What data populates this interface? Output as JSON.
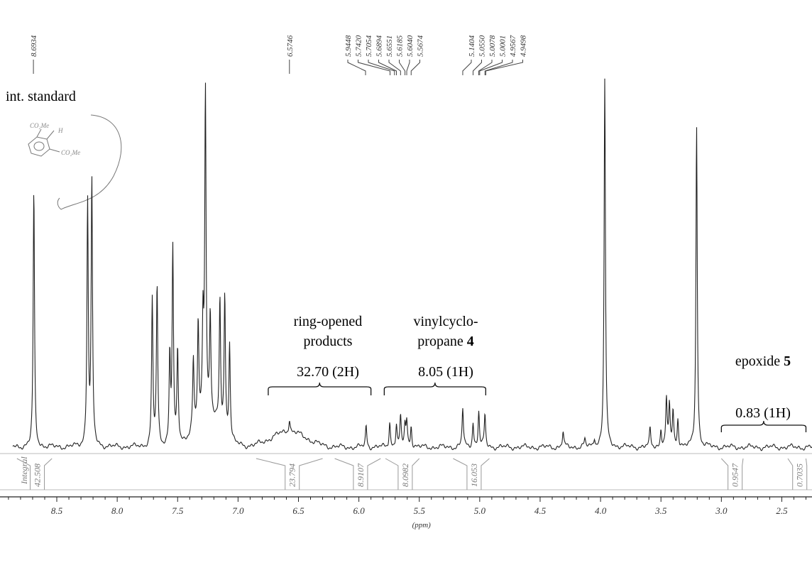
{
  "chart_data": {
    "type": "line",
    "title": "",
    "xlabel": "(ppm)",
    "ylabel": "",
    "x_reversed": true,
    "xlim": [
      8.97,
      2.25
    ],
    "x_ticks": [
      "8.5",
      "8.0",
      "7.5",
      "7.0",
      "6.5",
      "6.0",
      "5.5",
      "5.0",
      "4.5",
      "4.0",
      "3.5",
      "3.0",
      "2.5"
    ],
    "x_tick_values": [
      8.5,
      8.0,
      7.5,
      7.0,
      6.5,
      6.0,
      5.5,
      5.0,
      4.5,
      4.0,
      3.5,
      3.0,
      2.5
    ],
    "grid": false,
    "series": [
      {
        "peaks": [
          {
            "x": 8.69,
            "h": 360
          },
          {
            "x": 8.245,
            "h": 345
          },
          {
            "x": 8.21,
            "h": 370
          },
          {
            "x": 7.71,
            "h": 205
          },
          {
            "x": 7.67,
            "h": 225
          },
          {
            "x": 7.565,
            "h": 125
          },
          {
            "x": 7.54,
            "h": 275
          },
          {
            "x": 7.5,
            "h": 130
          },
          {
            "x": 7.37,
            "h": 100
          },
          {
            "x": 7.33,
            "h": 140
          },
          {
            "x": 7.29,
            "h": 135
          },
          {
            "x": 7.27,
            "h": 460
          },
          {
            "x": 7.23,
            "h": 145
          },
          {
            "x": 7.15,
            "h": 180
          },
          {
            "x": 7.11,
            "h": 195
          },
          {
            "x": 7.07,
            "h": 135
          },
          {
            "x": 6.5746,
            "h": 18
          },
          {
            "x": 5.94,
            "h": 30
          },
          {
            "x": 5.7448,
            "h": 35
          },
          {
            "x": 5.6894,
            "h": 32
          },
          {
            "x": 5.6551,
            "h": 40
          },
          {
            "x": 5.6185,
            "h": 30
          },
          {
            "x": 5.604,
            "h": 35
          },
          {
            "x": 5.5674,
            "h": 30
          },
          {
            "x": 5.1404,
            "h": 55
          },
          {
            "x": 5.055,
            "h": 35
          },
          {
            "x": 5.0078,
            "h": 50
          },
          {
            "x": 4.9567,
            "h": 45
          },
          {
            "x": 4.31,
            "h": 22
          },
          {
            "x": 4.13,
            "h": 10
          },
          {
            "x": 4.05,
            "h": 12
          },
          {
            "x": 3.965,
            "h": 520
          },
          {
            "x": 3.59,
            "h": 25
          },
          {
            "x": 3.5,
            "h": 25
          },
          {
            "x": 3.455,
            "h": 65
          },
          {
            "x": 3.43,
            "h": 60
          },
          {
            "x": 3.4,
            "h": 50
          },
          {
            "x": 3.36,
            "h": 40
          },
          {
            "x": 3.205,
            "h": 455
          }
        ],
        "broad_humps": [
          {
            "x": 6.58,
            "h": 22,
            "w": 0.2
          },
          {
            "x": 7.25,
            "h": 40,
            "w": 0.15
          }
        ]
      }
    ],
    "peak_labels": [
      "8.6934",
      "6.5746",
      "5.9448",
      "5.7420",
      "5.7054",
      "5.6894",
      "5.6551",
      "5.6185",
      "5.6040",
      "5.5674",
      "5.1404",
      "5.0550",
      "5.0078",
      "5.0001",
      "4.9567",
      "4.9498"
    ],
    "peak_label_ppm": [
      8.6934,
      6.5746,
      5.9448,
      5.742,
      5.7054,
      5.6894,
      5.6551,
      5.6185,
      5.604,
      5.5674,
      5.1404,
      5.055,
      5.0078,
      5.0001,
      4.9567,
      4.9498
    ],
    "integral_row_label": "Integral",
    "integrals": [
      {
        "value": "42.508",
        "from": 8.83,
        "to": 8.54
      },
      {
        "value": "23.794",
        "from": 6.85,
        "to": 6.3
      },
      {
        "value": "8.9107",
        "from": 6.2,
        "to": 5.82
      },
      {
        "value": "8.0982",
        "from": 5.78,
        "to": 5.5
      },
      {
        "value": "16.053",
        "from": 5.22,
        "to": 4.92
      },
      {
        "value": "0.9547",
        "from": 3.0,
        "to": 2.82
      },
      {
        "value": "0.7035",
        "from": 2.45,
        "to": 2.3
      }
    ],
    "annotations": [
      {
        "id": "int-standard",
        "text": "int. standard"
      },
      {
        "id": "ring-opened",
        "lines": [
          "ring-opened",
          "products"
        ],
        "value": "32.70 (2H)",
        "from": 6.75,
        "to": 5.9
      },
      {
        "id": "vinylcyclopropane",
        "lines": [
          "vinylcyclo-",
          "propane "
        ],
        "bold": "4",
        "value": "8.05 (1H)",
        "from": 5.79,
        "to": 4.95
      },
      {
        "id": "epoxide",
        "lines": [
          "epoxide "
        ],
        "bold": "5",
        "value": "0.83 (1H)",
        "from": 3.0,
        "to": 2.3
      }
    ],
    "sketch_labels": [
      "CO₂Me",
      "H",
      "CO₂Me"
    ]
  }
}
